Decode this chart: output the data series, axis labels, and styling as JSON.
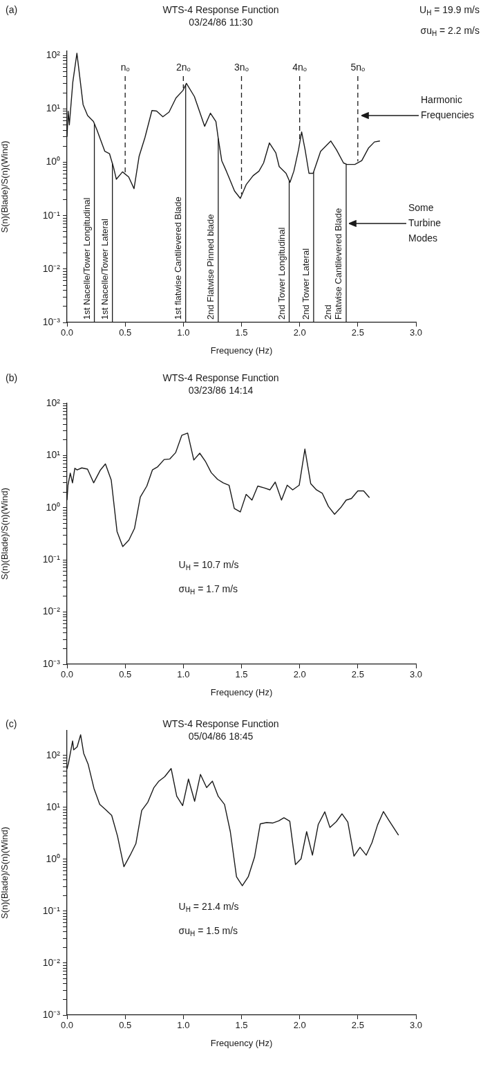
{
  "chart_data": [
    {
      "type": "line",
      "title": "WTS-4 Response Function",
      "subtitle": "03/24/86 11:30",
      "xlabel": "Frequency (Hz)",
      "ylabel": "S(n)(Blade)/S(n)(Wind)",
      "x": [
        0.0,
        0.01,
        0.02,
        0.05,
        0.085,
        0.138,
        0.177,
        0.227,
        0.256,
        0.325,
        0.365,
        0.4,
        0.424,
        0.477,
        0.53,
        0.576,
        0.62,
        0.67,
        0.73,
        0.77,
        0.824,
        0.877,
        0.937,
        0.996,
        1.026,
        1.095,
        1.183,
        1.233,
        1.28,
        1.3,
        1.33,
        1.37,
        1.44,
        1.49,
        1.54,
        1.6,
        1.65,
        1.69,
        1.74,
        1.795,
        1.824,
        1.883,
        1.917,
        1.95,
        1.99,
        2.017,
        2.047,
        2.08,
        2.116,
        2.18,
        2.268,
        2.317,
        2.377,
        2.406,
        2.475,
        2.534,
        2.593,
        2.643,
        2.69
      ],
      "values": [
        3,
        9,
        5,
        32,
        110,
        12,
        7.5,
        5.8,
        4.1,
        1.6,
        1.45,
        0.8,
        0.48,
        0.66,
        0.53,
        0.32,
        1.3,
        2.9,
        9.3,
        9.1,
        7.1,
        8.7,
        16,
        22,
        30,
        17,
        4.7,
        8.3,
        5.8,
        2.8,
        1.07,
        0.68,
        0.29,
        0.21,
        0.38,
        0.56,
        0.68,
        0.97,
        2.3,
        1.5,
        0.83,
        0.62,
        0.42,
        0.68,
        1.7,
        3.7,
        1.7,
        0.62,
        0.62,
        1.6,
        2.5,
        1.7,
        0.97,
        0.91,
        0.91,
        1.07,
        1.86,
        2.4,
        2.5
      ],
      "color": "#1a1a1a",
      "log": "y",
      "grid": false,
      "legend": false,
      "marker": "none",
      "line_style": "solid",
      "xlim": [
        0,
        3
      ],
      "ylim": [
        0.001,
        120
      ],
      "xticks": [
        {
          "value": 0,
          "label": "0.0"
        },
        0.5,
        {
          "value": 1,
          "label": "1.0"
        },
        1.5,
        {
          "value": 2,
          "label": "2.0"
        },
        2.5,
        {
          "value": 3,
          "label": "3.0"
        }
      ],
      "yticks": [
        {
          "value": 0.001,
          "label": "10⁻³"
        },
        {
          "value": 0.002,
          "label": null
        },
        {
          "value": 0.003,
          "label": null
        },
        {
          "value": 0.004,
          "label": null
        },
        {
          "value": 0.005,
          "label": null
        },
        {
          "value": 0.006,
          "label": null
        },
        {
          "value": 0.007,
          "label": null
        },
        {
          "value": 0.008,
          "label": null
        },
        {
          "value": 0.009,
          "label": null
        },
        {
          "value": 0.01,
          "label": "10⁻²"
        },
        {
          "value": 0.02,
          "label": null
        },
        {
          "value": 0.03,
          "label": null
        },
        {
          "value": 0.04,
          "label": null
        },
        {
          "value": 0.05,
          "label": null
        },
        {
          "value": 0.06,
          "label": null
        },
        {
          "value": 0.07,
          "label": null
        },
        {
          "value": 0.08,
          "label": null
        },
        {
          "value": 0.09,
          "label": null
        },
        {
          "value": 0.1,
          "label": "10⁻¹"
        },
        {
          "value": 0.2,
          "label": null
        },
        {
          "value": 0.3,
          "label": null
        },
        {
          "value": 0.4,
          "label": null
        },
        {
          "value": 0.5,
          "label": null
        },
        {
          "value": 0.6,
          "label": null
        },
        {
          "value": 0.7,
          "label": null
        },
        {
          "value": 0.8,
          "label": null
        },
        {
          "value": 0.9,
          "label": null
        },
        {
          "value": 1,
          "label": "10⁰"
        },
        {
          "value": 2,
          "label": null
        },
        {
          "value": 3,
          "label": null
        },
        {
          "value": 4,
          "label": null
        },
        {
          "value": 5,
          "label": null
        },
        {
          "value": 6,
          "label": null
        },
        {
          "value": 7,
          "label": null
        },
        {
          "value": 8,
          "label": null
        },
        {
          "value": 9,
          "label": null
        },
        {
          "value": 10,
          "label": "10¹"
        },
        {
          "value": 20,
          "label": null
        },
        {
          "value": 30,
          "label": null
        },
        {
          "value": 40,
          "label": null
        },
        {
          "value": 50,
          "label": null
        },
        {
          "value": 60,
          "label": null
        },
        {
          "value": 70,
          "label": null
        },
        {
          "value": 80,
          "label": null
        },
        {
          "value": 90,
          "label": null
        },
        {
          "value": 100,
          "label": "10²"
        }
      ],
      "ref_lines": [
        {
          "axis": "x",
          "value": 0.5,
          "label": "nₒ",
          "line_style": "dashed"
        },
        {
          "axis": "x",
          "value": 1.0,
          "label": "2nₒ",
          "line_style": "dashed"
        },
        {
          "axis": "x",
          "value": 1.5,
          "label": "3nₒ",
          "line_style": "dashed"
        },
        {
          "axis": "x",
          "value": 2.0,
          "label": "4nₒ",
          "line_style": "dashed"
        },
        {
          "axis": "x",
          "value": 2.5,
          "label": "5nₒ",
          "line_style": "dashed"
        },
        {
          "axis": "x",
          "value": 0.235,
          "label": "1st Nacelle/Tower Longitudinal",
          "line_style": "solid"
        },
        {
          "axis": "x",
          "value": 0.39,
          "label": "1st Nacelle/Tower Lateral",
          "line_style": "solid"
        },
        {
          "axis": "x",
          "value": 1.02,
          "label": "1st flatwise Cantilevered Blade",
          "line_style": "solid"
        },
        {
          "axis": "x",
          "value": 1.3,
          "label": "2nd Flatwise Pinned blade",
          "line_style": "solid"
        },
        {
          "axis": "x",
          "value": 1.91,
          "label": "2nd Tower Longitudinal",
          "line_style": "solid"
        },
        {
          "axis": "x",
          "value": 2.12,
          "label": "2nd Tower Lateral",
          "line_style": "solid"
        },
        {
          "axis": "x",
          "value": 2.4,
          "label": "2nd Flatwise Cantilevered Blade",
          "line_style": "solid"
        }
      ],
      "annotations": [
        "(a)",
        "U$_{H}$ = 19.9 m/s",
        "σu$_{H}$ = 2.2 m/s",
        "Harmonic Frequencies",
        "Some Turbine Modes"
      ]
    },
    {
      "type": "line",
      "title": "WTS-4 Response Function",
      "subtitle": "03/23/86 14:14",
      "xlabel": "Frequency (Hz)",
      "ylabel": "S(n)(Blade)/S(n)(Wind)",
      "x": [
        0.0,
        0.008,
        0.028,
        0.047,
        0.067,
        0.087,
        0.127,
        0.176,
        0.229,
        0.285,
        0.33,
        0.38,
        0.43,
        0.479,
        0.532,
        0.58,
        0.63,
        0.686,
        0.734,
        0.78,
        0.835,
        0.884,
        0.934,
        0.987,
        1.037,
        1.09,
        1.141,
        1.189,
        1.24,
        1.294,
        1.343,
        1.393,
        1.438,
        1.49,
        1.54,
        1.59,
        1.64,
        1.695,
        1.745,
        1.79,
        1.844,
        1.893,
        1.94,
        1.996,
        2.045,
        2.095,
        2.144,
        2.194,
        2.247,
        2.3,
        2.352,
        2.4,
        2.445,
        2.5,
        2.55,
        2.6
      ],
      "values": [
        1.4,
        2.7,
        4.6,
        3.0,
        5.7,
        5.3,
        5.8,
        5.5,
        3.0,
        5.2,
        6.9,
        3.4,
        0.35,
        0.18,
        0.24,
        0.4,
        1.6,
        2.6,
        5.3,
        6.1,
        8.4,
        8.6,
        11.4,
        24.5,
        27,
        8.2,
        11.1,
        7.8,
        4.7,
        3.5,
        3.0,
        2.7,
        0.97,
        0.83,
        1.8,
        1.4,
        2.6,
        2.4,
        2.2,
        3.1,
        1.4,
        2.7,
        2.2,
        2.7,
        13.3,
        2.9,
        2.2,
        1.9,
        1.06,
        0.75,
        1.0,
        1.4,
        1.5,
        2.1,
        2.1,
        1.56
      ],
      "color": "#1a1a1a",
      "log": "y",
      "grid": false,
      "legend": false,
      "marker": "none",
      "line_style": "solid",
      "xlim": [
        0,
        3
      ],
      "ylim": [
        0.001,
        100
      ],
      "xticks": [
        {
          "value": 0,
          "label": "0.0"
        },
        0.5,
        {
          "value": 1,
          "label": "1.0"
        },
        1.5,
        {
          "value": 2,
          "label": "2.0"
        },
        2.5,
        {
          "value": 3,
          "label": "3.0"
        }
      ],
      "yticks": [
        {
          "value": 0.001,
          "label": "10⁻³"
        },
        {
          "value": 0.002,
          "label": null
        },
        {
          "value": 0.003,
          "label": null
        },
        {
          "value": 0.004,
          "label": null
        },
        {
          "value": 0.005,
          "label": null
        },
        {
          "value": 0.006,
          "label": null
        },
        {
          "value": 0.007,
          "label": null
        },
        {
          "value": 0.008,
          "label": null
        },
        {
          "value": 0.009,
          "label": null
        },
        {
          "value": 0.01,
          "label": "10⁻²"
        },
        {
          "value": 0.02,
          "label": null
        },
        {
          "value": 0.03,
          "label": null
        },
        {
          "value": 0.04,
          "label": null
        },
        {
          "value": 0.05,
          "label": null
        },
        {
          "value": 0.06,
          "label": null
        },
        {
          "value": 0.07,
          "label": null
        },
        {
          "value": 0.08,
          "label": null
        },
        {
          "value": 0.09,
          "label": null
        },
        {
          "value": 0.1,
          "label": "10⁻¹"
        },
        {
          "value": 0.2,
          "label": null
        },
        {
          "value": 0.3,
          "label": null
        },
        {
          "value": 0.4,
          "label": null
        },
        {
          "value": 0.5,
          "label": null
        },
        {
          "value": 0.6,
          "label": null
        },
        {
          "value": 0.7,
          "label": null
        },
        {
          "value": 0.8,
          "label": null
        },
        {
          "value": 0.9,
          "label": null
        },
        {
          "value": 1,
          "label": "10⁰"
        },
        {
          "value": 2,
          "label": null
        },
        {
          "value": 3,
          "label": null
        },
        {
          "value": 4,
          "label": null
        },
        {
          "value": 5,
          "label": null
        },
        {
          "value": 6,
          "label": null
        },
        {
          "value": 7,
          "label": null
        },
        {
          "value": 8,
          "label": null
        },
        {
          "value": 9,
          "label": null
        },
        {
          "value": 10,
          "label": "10¹"
        },
        {
          "value": 20,
          "label": null
        },
        {
          "value": 30,
          "label": null
        },
        {
          "value": 40,
          "label": null
        },
        {
          "value": 50,
          "label": null
        },
        {
          "value": 60,
          "label": null
        },
        {
          "value": 70,
          "label": null
        },
        {
          "value": 80,
          "label": null
        },
        {
          "value": 90,
          "label": null
        },
        {
          "value": 100,
          "label": "10²"
        }
      ],
      "annotations": [
        "(b)",
        "U$_{H}$ = 10.7 m/s",
        "σu$_{H}$ = 1.7 m/s"
      ]
    },
    {
      "type": "line",
      "title": "WTS-4 Response Function",
      "subtitle": "05/04/86 18:45",
      "xlabel": "Frequency (Hz)",
      "ylabel": "S(n)(Blade)/S(n)(Wind)",
      "x": [
        0.0,
        0.014,
        0.048,
        0.057,
        0.087,
        0.117,
        0.143,
        0.182,
        0.232,
        0.281,
        0.331,
        0.384,
        0.434,
        0.489,
        0.543,
        0.592,
        0.642,
        0.695,
        0.747,
        0.79,
        0.84,
        0.895,
        0.943,
        0.994,
        1.044,
        1.097,
        1.147,
        1.2,
        1.25,
        1.3,
        1.354,
        1.404,
        1.457,
        1.507,
        1.558,
        1.612,
        1.661,
        1.717,
        1.77,
        1.82,
        1.865,
        1.915,
        1.964,
        2.012,
        2.06,
        2.11,
        2.16,
        2.216,
        2.26,
        2.315,
        2.364,
        2.414,
        2.467,
        2.519,
        2.572,
        2.622,
        2.67,
        2.72,
        2.77,
        2.85
      ],
      "values": [
        55,
        74,
        190,
        128,
        146,
        250,
        110,
        67,
        23,
        11.4,
        9.1,
        7.0,
        2.8,
        0.72,
        1.2,
        2.0,
        8.7,
        12.6,
        24,
        32,
        39,
        56,
        16.5,
        10.8,
        35,
        13.1,
        43,
        24,
        32,
        16.3,
        11.4,
        3.4,
        0.46,
        0.31,
        0.46,
        1.1,
        4.8,
        5.1,
        5.0,
        5.5,
        6.3,
        5.4,
        0.79,
        1.02,
        3.4,
        1.2,
        4.7,
        8.2,
        4.1,
        5.3,
        7.5,
        5.2,
        1.15,
        1.7,
        1.2,
        2.1,
        4.6,
        8.3,
        5.5,
        2.9
      ],
      "color": "#1a1a1a",
      "log": "y",
      "grid": false,
      "legend": false,
      "marker": "none",
      "line_style": "solid",
      "xlim": [
        0,
        3
      ],
      "ylim": [
        0.001,
        300
      ],
      "xticks": [
        {
          "value": 0,
          "label": "0.0"
        },
        0.5,
        {
          "value": 1,
          "label": "1.0"
        },
        1.5,
        {
          "value": 2,
          "label": "2.0"
        },
        2.5,
        {
          "value": 3,
          "label": "3.0"
        }
      ],
      "yticks": [
        {
          "value": 0.001,
          "label": "10⁻³"
        },
        {
          "value": 0.002,
          "label": null
        },
        {
          "value": 0.003,
          "label": null
        },
        {
          "value": 0.004,
          "label": null
        },
        {
          "value": 0.005,
          "label": null
        },
        {
          "value": 0.006,
          "label": null
        },
        {
          "value": 0.007,
          "label": null
        },
        {
          "value": 0.008,
          "label": null
        },
        {
          "value": 0.009,
          "label": null
        },
        {
          "value": 0.01,
          "label": "10⁻²"
        },
        {
          "value": 0.02,
          "label": null
        },
        {
          "value": 0.03,
          "label": null
        },
        {
          "value": 0.04,
          "label": null
        },
        {
          "value": 0.05,
          "label": null
        },
        {
          "value": 0.06,
          "label": null
        },
        {
          "value": 0.07,
          "label": null
        },
        {
          "value": 0.08,
          "label": null
        },
        {
          "value": 0.09,
          "label": null
        },
        {
          "value": 0.1,
          "label": "10⁻¹"
        },
        {
          "value": 0.2,
          "label": null
        },
        {
          "value": 0.3,
          "label": null
        },
        {
          "value": 0.4,
          "label": null
        },
        {
          "value": 0.5,
          "label": null
        },
        {
          "value": 0.6,
          "label": null
        },
        {
          "value": 0.7,
          "label": null
        },
        {
          "value": 0.8,
          "label": null
        },
        {
          "value": 0.9,
          "label": null
        },
        {
          "value": 1,
          "label": "10⁰"
        },
        {
          "value": 2,
          "label": null
        },
        {
          "value": 3,
          "label": null
        },
        {
          "value": 4,
          "label": null
        },
        {
          "value": 5,
          "label": null
        },
        {
          "value": 6,
          "label": null
        },
        {
          "value": 7,
          "label": null
        },
        {
          "value": 8,
          "label": null
        },
        {
          "value": 9,
          "label": null
        },
        {
          "value": 10,
          "label": "10¹"
        },
        {
          "value": 20,
          "label": null
        },
        {
          "value": 30,
          "label": null
        },
        {
          "value": 40,
          "label": null
        },
        {
          "value": 50,
          "label": null
        },
        {
          "value": 60,
          "label": null
        },
        {
          "value": 70,
          "label": null
        },
        {
          "value": 80,
          "label": null
        },
        {
          "value": 90,
          "label": null
        },
        {
          "value": 100,
          "label": "10²"
        }
      ],
      "annotations": [
        "(c)",
        "U$_{H}$ = 21.4 m/s",
        "σu$_{H}$ = 1.5 m/s"
      ]
    }
  ]
}
